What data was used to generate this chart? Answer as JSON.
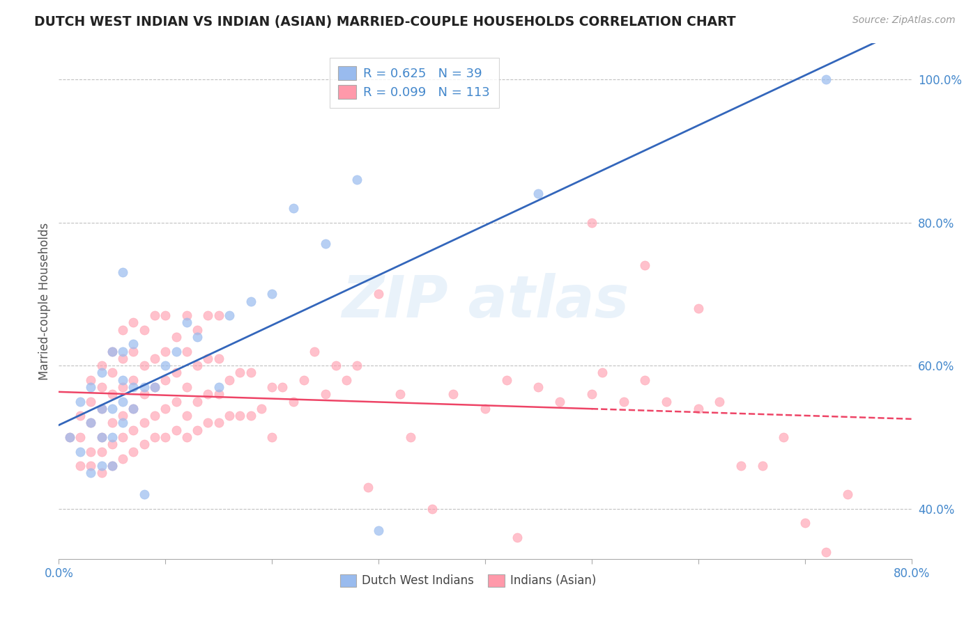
{
  "title": "DUTCH WEST INDIAN VS INDIAN (ASIAN) MARRIED-COUPLE HOUSEHOLDS CORRELATION CHART",
  "source": "Source: ZipAtlas.com",
  "ylabel": "Married-couple Households",
  "xlim": [
    0.0,
    0.8
  ],
  "ylim": [
    0.33,
    1.05
  ],
  "xticks": [
    0.0,
    0.1,
    0.2,
    0.3,
    0.4,
    0.5,
    0.6,
    0.7,
    0.8
  ],
  "yticks": [
    0.4,
    0.6,
    0.8,
    1.0
  ],
  "legend_R1": "R = 0.625",
  "legend_N1": "N = 39",
  "legend_R2": "R = 0.099",
  "legend_N2": "N = 113",
  "blue_color": "#99BBEE",
  "pink_color": "#FF99AA",
  "blue_line_color": "#3366BB",
  "pink_line_color": "#EE4466",
  "blue_scatter_x": [
    0.01,
    0.02,
    0.02,
    0.03,
    0.03,
    0.03,
    0.04,
    0.04,
    0.04,
    0.04,
    0.05,
    0.05,
    0.05,
    0.05,
    0.06,
    0.06,
    0.06,
    0.06,
    0.06,
    0.07,
    0.07,
    0.07,
    0.08,
    0.08,
    0.09,
    0.1,
    0.11,
    0.12,
    0.13,
    0.15,
    0.16,
    0.18,
    0.2,
    0.22,
    0.25,
    0.28,
    0.3,
    0.45,
    0.72
  ],
  "blue_scatter_y": [
    0.5,
    0.48,
    0.55,
    0.45,
    0.52,
    0.57,
    0.46,
    0.5,
    0.54,
    0.59,
    0.46,
    0.5,
    0.54,
    0.62,
    0.52,
    0.55,
    0.58,
    0.62,
    0.73,
    0.54,
    0.57,
    0.63,
    0.42,
    0.57,
    0.57,
    0.6,
    0.62,
    0.66,
    0.64,
    0.57,
    0.67,
    0.69,
    0.7,
    0.82,
    0.77,
    0.86,
    0.37,
    0.84,
    1.0
  ],
  "pink_scatter_x": [
    0.01,
    0.02,
    0.02,
    0.02,
    0.03,
    0.03,
    0.03,
    0.03,
    0.03,
    0.04,
    0.04,
    0.04,
    0.04,
    0.04,
    0.04,
    0.05,
    0.05,
    0.05,
    0.05,
    0.05,
    0.05,
    0.06,
    0.06,
    0.06,
    0.06,
    0.06,
    0.06,
    0.07,
    0.07,
    0.07,
    0.07,
    0.07,
    0.07,
    0.08,
    0.08,
    0.08,
    0.08,
    0.08,
    0.09,
    0.09,
    0.09,
    0.09,
    0.09,
    0.1,
    0.1,
    0.1,
    0.1,
    0.1,
    0.11,
    0.11,
    0.11,
    0.11,
    0.12,
    0.12,
    0.12,
    0.12,
    0.12,
    0.13,
    0.13,
    0.13,
    0.13,
    0.14,
    0.14,
    0.14,
    0.14,
    0.15,
    0.15,
    0.15,
    0.15,
    0.16,
    0.16,
    0.17,
    0.17,
    0.18,
    0.18,
    0.19,
    0.2,
    0.2,
    0.21,
    0.22,
    0.23,
    0.24,
    0.25,
    0.26,
    0.27,
    0.28,
    0.29,
    0.3,
    0.32,
    0.33,
    0.35,
    0.37,
    0.4,
    0.42,
    0.43,
    0.45,
    0.47,
    0.5,
    0.51,
    0.53,
    0.55,
    0.57,
    0.6,
    0.62,
    0.64,
    0.66,
    0.68,
    0.7,
    0.72,
    0.74,
    0.5,
    0.55,
    0.6
  ],
  "pink_scatter_y": [
    0.5,
    0.46,
    0.5,
    0.53,
    0.46,
    0.48,
    0.52,
    0.55,
    0.58,
    0.45,
    0.48,
    0.5,
    0.54,
    0.57,
    0.6,
    0.46,
    0.49,
    0.52,
    0.56,
    0.59,
    0.62,
    0.47,
    0.5,
    0.53,
    0.57,
    0.61,
    0.65,
    0.48,
    0.51,
    0.54,
    0.58,
    0.62,
    0.66,
    0.49,
    0.52,
    0.56,
    0.6,
    0.65,
    0.5,
    0.53,
    0.57,
    0.61,
    0.67,
    0.5,
    0.54,
    0.58,
    0.62,
    0.67,
    0.51,
    0.55,
    0.59,
    0.64,
    0.5,
    0.53,
    0.57,
    0.62,
    0.67,
    0.51,
    0.55,
    0.6,
    0.65,
    0.52,
    0.56,
    0.61,
    0.67,
    0.52,
    0.56,
    0.61,
    0.67,
    0.53,
    0.58,
    0.53,
    0.59,
    0.53,
    0.59,
    0.54,
    0.5,
    0.57,
    0.57,
    0.55,
    0.58,
    0.62,
    0.56,
    0.6,
    0.58,
    0.6,
    0.43,
    0.7,
    0.56,
    0.5,
    0.4,
    0.56,
    0.54,
    0.58,
    0.36,
    0.57,
    0.55,
    0.56,
    0.59,
    0.55,
    0.58,
    0.55,
    0.54,
    0.55,
    0.46,
    0.46,
    0.5,
    0.38,
    0.34,
    0.42,
    0.8,
    0.74,
    0.68
  ]
}
